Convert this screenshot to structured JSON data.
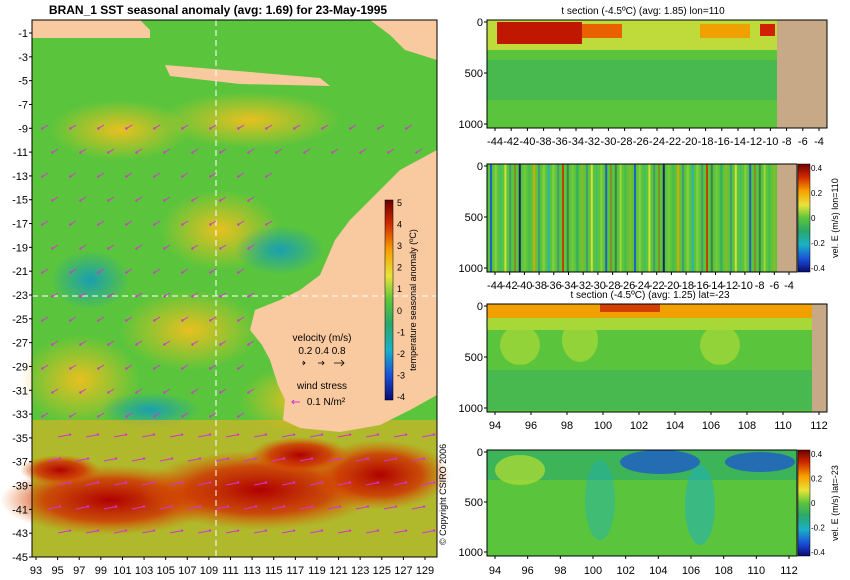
{
  "main_title": "BRAN_1 SST seasonal anomaly (avg: 1.69) for 23-May-1995",
  "copyright": "© Copyright CSIRO 2006",
  "colors": {
    "ocean": "#5ac53c",
    "land": "#f9c9a0",
    "seafloor": "#c7a887",
    "arrow": "#d633d6",
    "guide": "#ffffff"
  },
  "map": {
    "lon_ticks": [
      "93",
      "95",
      "97",
      "99",
      "101",
      "103",
      "105",
      "107",
      "109",
      "111",
      "113",
      "115",
      "117",
      "119",
      "121",
      "123",
      "125",
      "127",
      "129"
    ],
    "lat_ticks": [
      "-1",
      "-3",
      "-5",
      "-7",
      "-9",
      "-11",
      "-13",
      "-15",
      "-17",
      "-19",
      "-21",
      "-23",
      "-25",
      "-27",
      "-29",
      "-31",
      "-33",
      "-35",
      "-37",
      "-39",
      "-41",
      "-43",
      "-45"
    ],
    "colorbar": {
      "label": "temperature seasonal anomaly (ºC)",
      "ticks": [
        "5",
        "4",
        "3",
        "2",
        "1",
        "0",
        "-1",
        "-2",
        "-3",
        "-4"
      ]
    },
    "velocity_legend": {
      "title": "velocity (m/s)",
      "values": "0.2 0.4 0.8"
    },
    "wind_legend": {
      "title": "wind stress",
      "value": "0.1 N/m²"
    }
  },
  "panels": [
    {
      "title": "t section (-4.5ºC) (avg: 1.85) lon=110",
      "y_ticks": [
        "0",
        "500",
        "1000"
      ],
      "x_ticks": [
        "-44",
        "-42",
        "-40",
        "-38",
        "-36",
        "-34",
        "-32",
        "-30",
        "-28",
        "-26",
        "-24",
        "-22",
        "-20",
        "-18",
        "-16",
        "-14",
        "-12",
        "-10",
        "-8",
        "-6",
        "-4"
      ]
    },
    {
      "title": "",
      "y_ticks": [
        "0",
        "500",
        "1000"
      ],
      "x_ticks": [
        "-44",
        "-42",
        "-40",
        "-38",
        "-36",
        "-34",
        "-32",
        "-30",
        "-28",
        "-26",
        "-24",
        "-22",
        "-20",
        "-18",
        "-16",
        "-14",
        "-12",
        "-10",
        "-8",
        "-6",
        "-4"
      ],
      "cbar_label": "vel. E (m/s) lon=110",
      "cbar_ticks": [
        "0.4",
        "0.2",
        "0",
        "-0.2",
        "-0.4"
      ]
    },
    {
      "title": "t section (-4.5ºC) (avg: 1.25) lat=-23",
      "y_ticks": [
        "0",
        "500",
        "1000"
      ],
      "x_ticks": [
        "94",
        "96",
        "98",
        "100",
        "102",
        "104",
        "106",
        "108",
        "110",
        "112"
      ]
    },
    {
      "title": "",
      "y_ticks": [
        "0",
        "500",
        "1000"
      ],
      "x_ticks": [
        "94",
        "96",
        "98",
        "100",
        "102",
        "104",
        "106",
        "108",
        "110",
        "112"
      ],
      "cbar_label": "vel. E (m/s) lat=-23",
      "cbar_ticks": [
        "0.4",
        "0.2",
        "0",
        "-0.2",
        "-0.4"
      ]
    }
  ],
  "chart_data": [
    {
      "type": "heatmap",
      "title": "BRAN_1 SST seasonal anomaly (avg: 1.69) for 23-May-1995",
      "xlabel": "",
      "ylabel": "",
      "xlim": [
        92,
        130
      ],
      "ylim": [
        -45,
        0
      ],
      "colorbar_range": [
        -4,
        5
      ],
      "guide_lines": {
        "lon": 110,
        "lat": -23
      }
    },
    {
      "type": "heatmap",
      "title": "t section (-4.5ºC) (avg: 1.85) lon=110",
      "xlim": [
        -45,
        -3
      ],
      "ylim": [
        0,
        1050
      ]
    },
    {
      "type": "heatmap",
      "title": "",
      "xlim": [
        -45,
        -3
      ],
      "ylim": [
        0,
        1050
      ],
      "colorbar_range": [
        -0.4,
        0.4
      ]
    },
    {
      "type": "heatmap",
      "title": "t section (-4.5ºC) (avg: 1.25) lat=-23",
      "xlim": [
        92.5,
        114
      ],
      "ylim": [
        0,
        1050
      ]
    },
    {
      "type": "heatmap",
      "title": "",
      "xlim": [
        92.5,
        114
      ],
      "ylim": [
        0,
        1050
      ],
      "colorbar_range": [
        -0.4,
        0.4
      ]
    }
  ]
}
